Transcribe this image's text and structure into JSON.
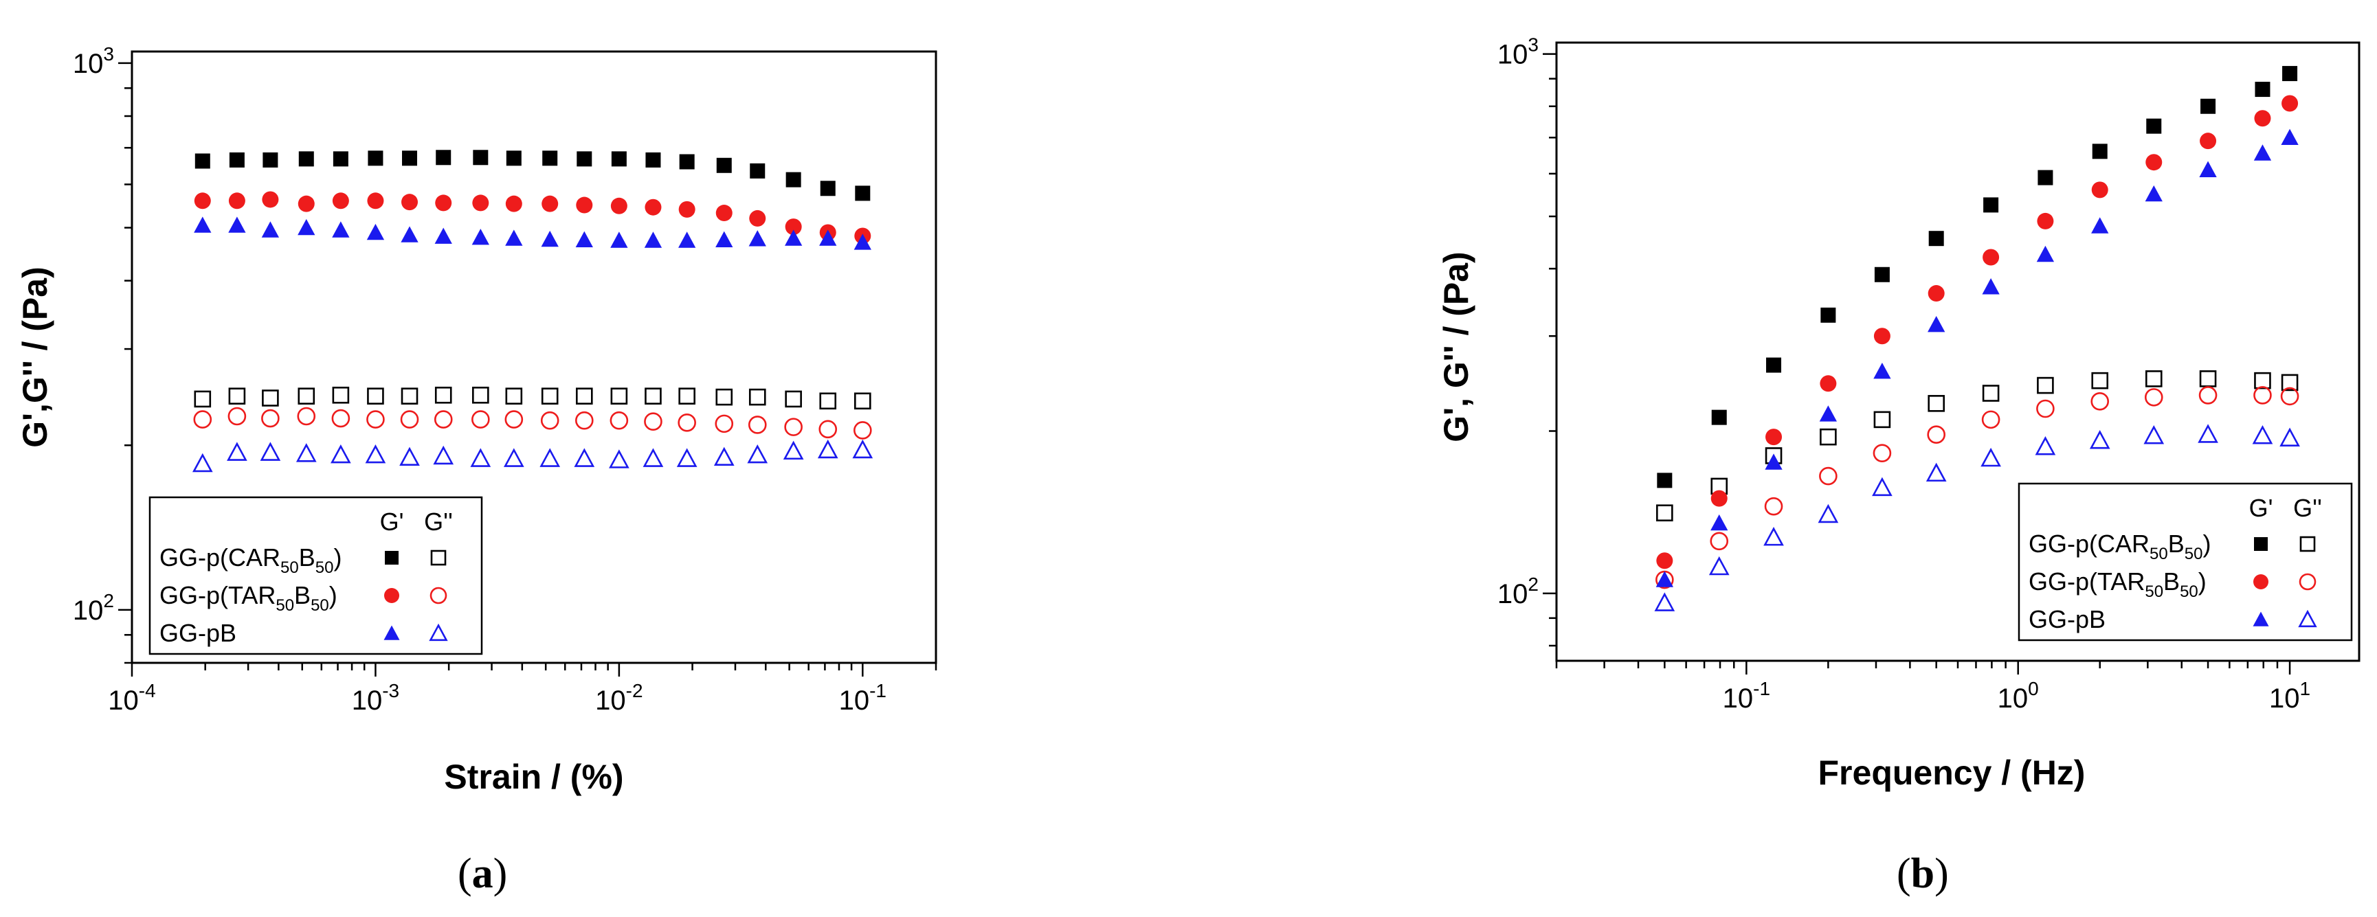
{
  "chart_data": [
    {
      "panel_label": "a",
      "type": "scatter",
      "x_scale": "log",
      "y_scale": "log",
      "xlim": [
        0.0001,
        0.2
      ],
      "ylim": [
        80,
        1050
      ],
      "xlabel": "Strain / (%)",
      "ylabel": "G',G'' / (Pa)",
      "xticks": [
        {
          "value": 0.0001,
          "base": "10",
          "exp": "-4"
        },
        {
          "value": 0.001,
          "base": "10",
          "exp": "-3"
        },
        {
          "value": 0.01,
          "base": "10",
          "exp": "-2"
        },
        {
          "value": 0.1,
          "base": "10",
          "exp": "-1"
        }
      ],
      "yticks": [
        {
          "value": 100,
          "base": "10",
          "exp": "2"
        },
        {
          "value": 1000,
          "base": "10",
          "exp": "3"
        }
      ],
      "legend": {
        "position": "bottom-left",
        "header_g1": "G'",
        "header_g2": "G''",
        "rows": [
          {
            "pre": "GG-p(CAR",
            "sub1": "50",
            "mid": "B",
            "sub2": "50",
            "post": ")",
            "color": "#000000",
            "symbol": "square"
          },
          {
            "pre": "GG-p(TAR",
            "sub1": "50",
            "mid": "B",
            "sub2": "50",
            "post": ")",
            "color": "#ee1c1c",
            "symbol": "circle"
          },
          {
            "pre": "GG-pB",
            "sub1": "",
            "mid": "",
            "sub2": "",
            "post": "",
            "color": "#1a1aee",
            "symbol": "triangle"
          }
        ]
      },
      "x": [
        0.000195,
        0.00027,
        0.00037,
        0.00052,
        0.00072,
        0.001,
        0.00138,
        0.0019,
        0.0027,
        0.0037,
        0.0052,
        0.0072,
        0.01,
        0.0138,
        0.019,
        0.027,
        0.037,
        0.052,
        0.072,
        0.1
      ],
      "series": [
        {
          "material": "CAR",
          "modulus": "G'",
          "filled": true,
          "symbol": "square",
          "color": "#000000",
          "values": [
            662,
            665,
            665,
            668,
            668,
            670,
            670,
            672,
            672,
            670,
            670,
            668,
            668,
            665,
            660,
            650,
            635,
            612,
            590,
            578
          ]
        },
        {
          "material": "CAR",
          "modulus": "G''",
          "filled": false,
          "symbol": "square",
          "color": "#000000",
          "values": [
            243,
            246,
            244,
            246,
            247,
            246,
            246,
            247,
            247,
            246,
            246,
            246,
            246,
            246,
            246,
            245,
            245,
            243,
            241,
            241
          ]
        },
        {
          "material": "TAR",
          "modulus": "G'",
          "filled": true,
          "symbol": "circle",
          "color": "#ee1c1c",
          "values": [
            560,
            560,
            563,
            553,
            560,
            560,
            557,
            555,
            555,
            553,
            553,
            550,
            548,
            545,
            540,
            532,
            520,
            502,
            490,
            483
          ]
        },
        {
          "material": "TAR",
          "modulus": "G''",
          "filled": false,
          "symbol": "circle",
          "color": "#ee1c1c",
          "values": [
            223,
            226,
            224,
            226,
            224,
            223,
            223,
            223,
            223,
            223,
            222,
            222,
            222,
            221,
            220,
            219,
            218,
            216,
            214,
            213
          ]
        },
        {
          "material": "pB",
          "modulus": "G'",
          "filled": true,
          "symbol": "triangle",
          "color": "#1a1aee",
          "values": [
            505,
            505,
            495,
            500,
            495,
            490,
            485,
            482,
            480,
            478,
            476,
            475,
            474,
            474,
            474,
            475,
            477,
            478,
            478,
            470
          ]
        },
        {
          "material": "pB",
          "modulus": "G''",
          "filled": false,
          "symbol": "triangle",
          "color": "#1a1aee",
          "values": [
            185,
            194,
            194,
            193,
            192,
            192,
            190,
            191,
            189,
            189,
            189,
            189,
            188,
            189,
            189,
            190,
            192,
            195,
            196,
            196
          ]
        }
      ]
    },
    {
      "panel_label": "b",
      "type": "scatter",
      "x_scale": "log",
      "y_scale": "log",
      "xlim": [
        0.02,
        18
      ],
      "ylim": [
        75,
        1050
      ],
      "xlabel": "Frequency / (Hz)",
      "ylabel": "G', G'' / (Pa)",
      "xticks": [
        {
          "value": 0.1,
          "base": "10",
          "exp": "-1"
        },
        {
          "value": 1,
          "base": "10",
          "exp": "0"
        },
        {
          "value": 10,
          "base": "10",
          "exp": "1"
        }
      ],
      "yticks": [
        {
          "value": 100,
          "base": "10",
          "exp": "2"
        },
        {
          "value": 1000,
          "base": "10",
          "exp": "3"
        }
      ],
      "legend": {
        "position": "bottom-right",
        "header_g1": "G'",
        "header_g2": "G''",
        "rows": [
          {
            "pre": "GG-p(CAR",
            "sub1": "50",
            "mid": "B",
            "sub2": "50",
            "post": ")",
            "color": "#000000",
            "symbol": "square"
          },
          {
            "pre": "GG-p(TAR",
            "sub1": "50",
            "mid": "B",
            "sub2": "50",
            "post": ")",
            "color": "#ee1c1c",
            "symbol": "circle"
          },
          {
            "pre": "GG-pB",
            "sub1": "",
            "mid": "",
            "sub2": "",
            "post": "",
            "color": "#1a1aee",
            "symbol": "triangle"
          }
        ]
      },
      "x": [
        0.05,
        0.0794,
        0.126,
        0.2,
        0.316,
        0.5,
        0.794,
        1.26,
        2.0,
        3.16,
        5.0,
        7.94,
        10.0
      ],
      "series": [
        {
          "material": "CAR",
          "modulus": "G'",
          "filled": true,
          "symbol": "square",
          "color": "#000000",
          "values": [
            162,
            212,
            265,
            328,
            390,
            455,
            525,
            590,
            660,
            735,
            800,
            860,
            920
          ]
        },
        {
          "material": "CAR",
          "modulus": "G''",
          "filled": false,
          "symbol": "square",
          "color": "#000000",
          "values": [
            141,
            158,
            180,
            195,
            210,
            225,
            235,
            243,
            248,
            250,
            250,
            248,
            246
          ]
        },
        {
          "material": "TAR",
          "modulus": "G'",
          "filled": true,
          "symbol": "circle",
          "color": "#ee1c1c",
          "values": [
            115,
            150,
            195,
            245,
            300,
            360,
            420,
            490,
            560,
            630,
            690,
            760,
            810
          ]
        },
        {
          "material": "TAR",
          "modulus": "G''",
          "filled": false,
          "symbol": "circle",
          "color": "#ee1c1c",
          "values": [
            106,
            125,
            145,
            165,
            182,
            197,
            210,
            220,
            227,
            231,
            233,
            233,
            232
          ]
        },
        {
          "material": "pB",
          "modulus": "G'",
          "filled": true,
          "symbol": "triangle",
          "color": "#1a1aee",
          "values": [
            106,
            135,
            175,
            215,
            258,
            315,
            370,
            425,
            480,
            550,
            610,
            655,
            700
          ]
        },
        {
          "material": "pB",
          "modulus": "G''",
          "filled": false,
          "symbol": "triangle",
          "color": "#1a1aee",
          "values": [
            96,
            112,
            127,
            140,
            157,
            167,
            178,
            187,
            192,
            196,
            197,
            196,
            194
          ]
        }
      ]
    }
  ]
}
